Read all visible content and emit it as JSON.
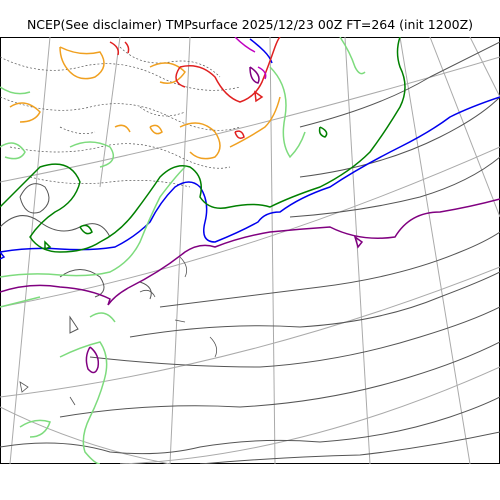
{
  "title": "NCEP(See disclaimer) TMPsurface 2025/12/23 00Z FT=264 (init 1200Z)",
  "colors": {
    "graticule": "#aaaaaa",
    "coast": "#555555",
    "isotherm_neutral": "#555555",
    "purple": "#800080",
    "blue": "#0000ee",
    "green": "#008000",
    "light_green": "#7ddb7d",
    "orange": "#f0a020",
    "red": "#e02020",
    "magenta": "#c000c0"
  }
}
